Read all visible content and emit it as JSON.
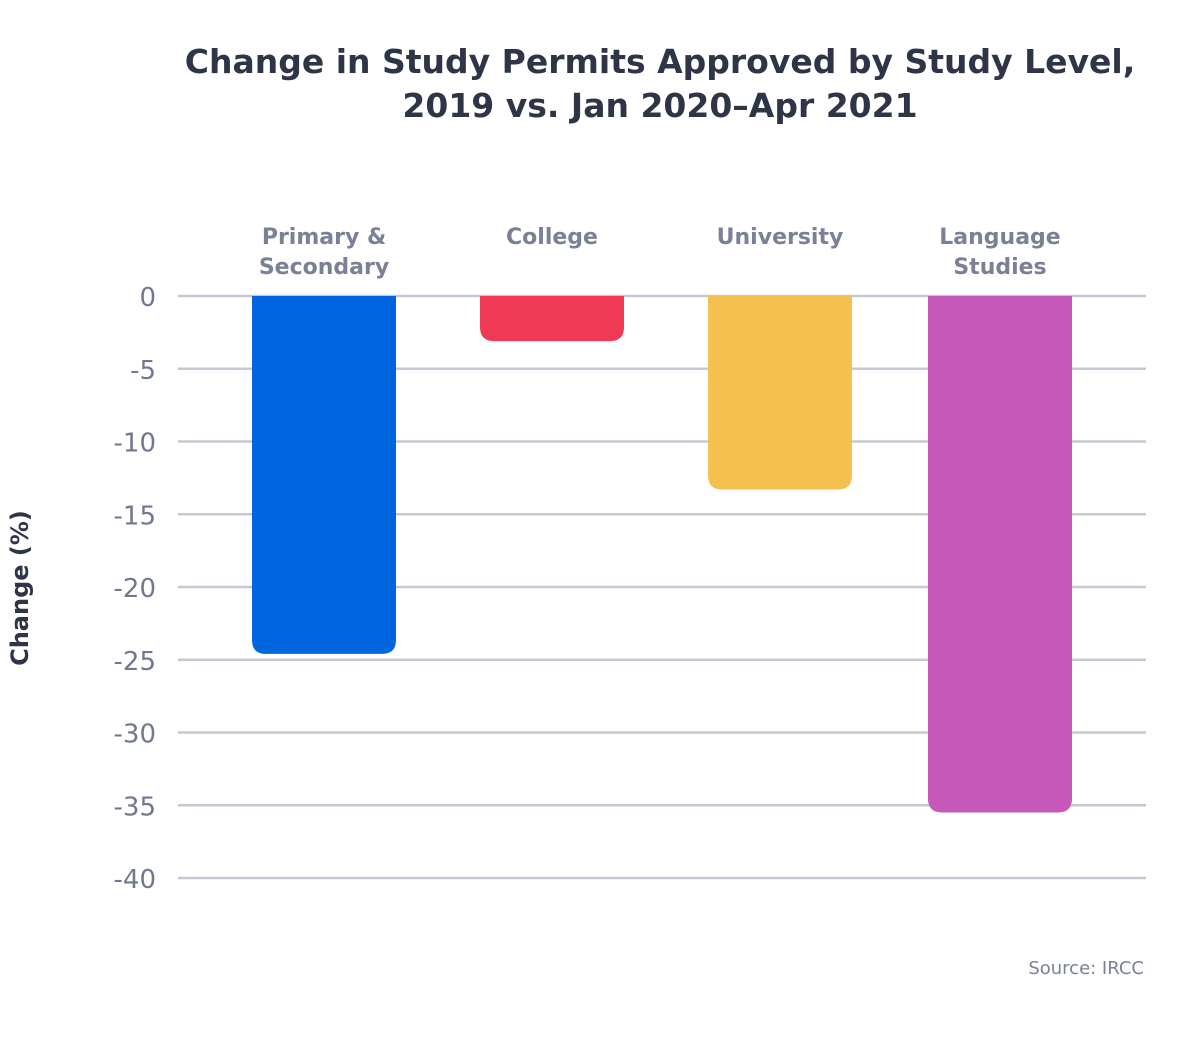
{
  "chart_data": {
    "type": "bar",
    "title": "Change in Study Permits Approved by Study Level,\n2019 vs. Jan 2020–Apr 2021",
    "ylabel": "Change (%)",
    "xlabel": "",
    "categories": [
      [
        "Primary &",
        "Secondary"
      ],
      [
        "College"
      ],
      [
        "University"
      ],
      [
        "Language",
        "Studies"
      ]
    ],
    "values": [
      -24.6,
      -3.1,
      -13.3,
      -35.5
    ],
    "colors": [
      "#0066e0",
      "#f03a55",
      "#f4c050",
      "#c558b8"
    ],
    "ylim": [
      -40,
      0
    ],
    "yticks": [
      0,
      -5,
      -10,
      -15,
      -20,
      -25,
      -30,
      -35,
      -40
    ],
    "grid": true,
    "source": "Source: IRCC"
  }
}
